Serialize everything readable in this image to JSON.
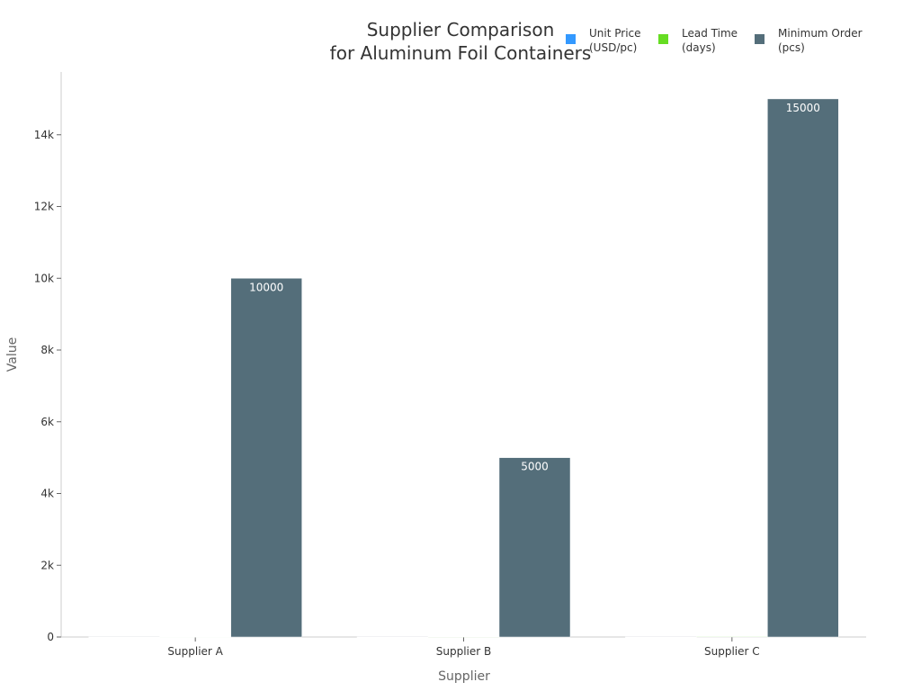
{
  "chart_data": {
    "type": "bar",
    "title_line1": "Supplier Comparison",
    "title_line2": "for Aluminum Foil Containers",
    "xlabel": "Supplier",
    "ylabel": "Value",
    "categories": [
      "Supplier A",
      "Supplier B",
      "Supplier C"
    ],
    "series": [
      {
        "name": "Unit Price (USD/pc)",
        "legend_lines": [
          "Unit Price",
          "(USD/pc)"
        ],
        "color": "#3399ff",
        "values": [
          0.5,
          0.45,
          0.4
        ],
        "labels": false
      },
      {
        "name": "Lead Time (days)",
        "legend_lines": [
          "Lead Time",
          "(days)"
        ],
        "color": "#66dd22",
        "values": [
          7,
          10,
          14
        ],
        "labels": false
      },
      {
        "name": "Minimum Order (pcs)",
        "legend_lines": [
          "Minimum Order",
          "(pcs)"
        ],
        "color": "#546e7a",
        "values": [
          10000,
          5000,
          15000
        ],
        "labels": true
      }
    ],
    "ylim": [
      0,
      15750
    ],
    "yticks": [
      0,
      2000,
      4000,
      6000,
      8000,
      10000,
      12000,
      14000
    ],
    "ytick_labels": [
      "0",
      "2k",
      "4k",
      "6k",
      "8k",
      "10k",
      "12k",
      "14k"
    ],
    "grid": false,
    "legend_position": "top-right"
  }
}
